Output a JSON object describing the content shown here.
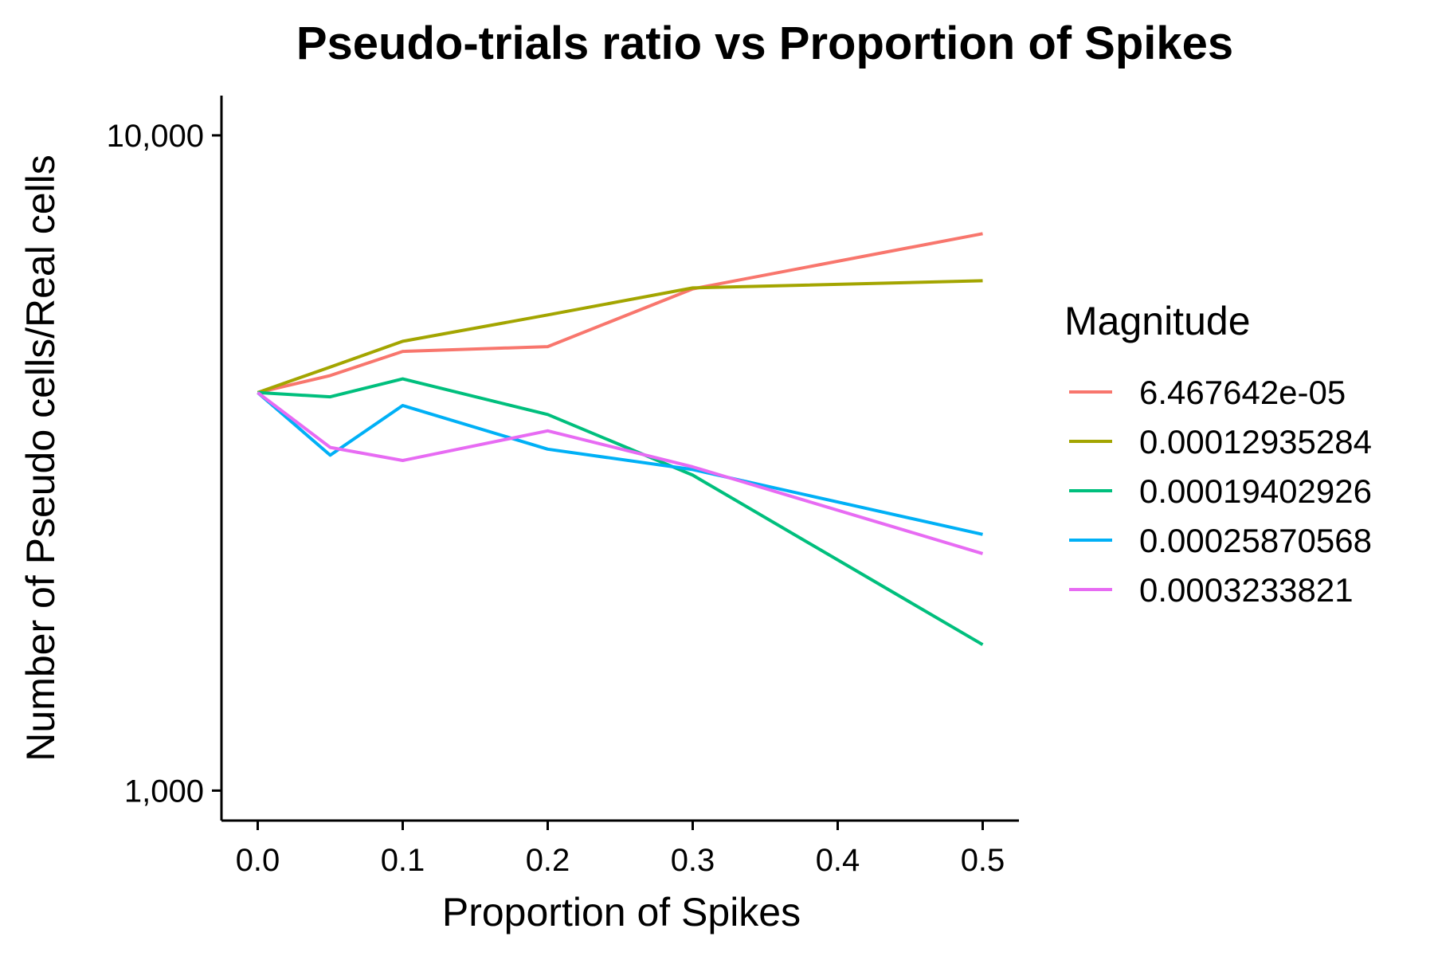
{
  "chart_data": {
    "type": "line",
    "title": "Pseudo-trials ratio vs Proportion of Spikes",
    "xlabel": "Proportion of Spikes",
    "ylabel": "Number of Pseudo cells/Real cells",
    "x_scale": "linear",
    "y_scale": "log",
    "xlim": [
      -0.025,
      0.525
    ],
    "ylim": [
      900,
      11500
    ],
    "x_ticks": [
      0.0,
      0.1,
      0.2,
      0.3,
      0.4,
      0.5
    ],
    "x_tick_labels": [
      "0.0",
      "0.1",
      "0.2",
      "0.3",
      "0.4",
      "0.5"
    ],
    "y_ticks": [
      1000,
      10000
    ],
    "y_tick_labels": [
      "1,000",
      "10,000"
    ],
    "grid": false,
    "legend_title": "Magnitude",
    "legend_position": "right",
    "x": [
      0.0,
      0.05,
      0.1,
      0.2,
      0.3,
      0.5
    ],
    "series": [
      {
        "name": "6.467642e-05",
        "color": "#F8766D",
        "values": [
          4050,
          4300,
          4680,
          4760,
          5830,
          7080
        ]
      },
      {
        "name": "0.00012935284",
        "color": "#A3A500",
        "values": [
          4050,
          4430,
          4850,
          5320,
          5850,
          6000
        ]
      },
      {
        "name": "0.00019402926",
        "color": "#00BF7D",
        "values": [
          4050,
          3990,
          4250,
          3750,
          3030,
          1670
        ]
      },
      {
        "name": "0.00025870568",
        "color": "#00B0F6",
        "values": [
          4050,
          3250,
          3870,
          3320,
          3090,
          2460
        ]
      },
      {
        "name": "0.0003233821",
        "color": "#E76BF3",
        "values": [
          4050,
          3340,
          3190,
          3540,
          3120,
          2300
        ]
      }
    ]
  }
}
